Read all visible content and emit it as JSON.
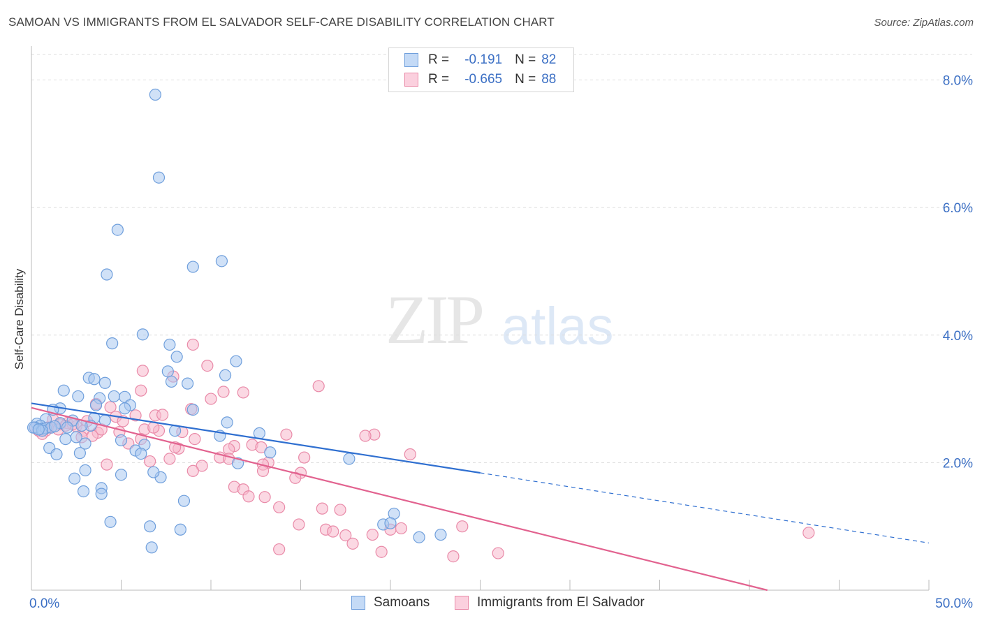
{
  "header": {
    "title": "SAMOAN VS IMMIGRANTS FROM EL SALVADOR SELF-CARE DISABILITY CORRELATION CHART",
    "source": "Source: ZipAtlas.com"
  },
  "watermark": {
    "zip": "ZIP",
    "atlas": "atlas"
  },
  "legend": {
    "rows": [
      {
        "r_label": "R =",
        "r_value": "-0.191",
        "n_label": "N =",
        "n_value": "82"
      },
      {
        "r_label": "R =",
        "r_value": "-0.665",
        "n_label": "N =",
        "n_value": "88"
      }
    ]
  },
  "colors": {
    "blue_fill": "#a9c8f0",
    "blue_stroke": "#6f9fdc",
    "blue_line": "#2f6fd0",
    "pink_fill": "#f7b8cc",
    "pink_stroke": "#e98aa8",
    "pink_line": "#e2628f",
    "tick_label": "#3b6fc4",
    "grid": "#dddddd"
  },
  "chart_data": {
    "type": "scatter",
    "title": "SAMOAN VS IMMIGRANTS FROM EL SALVADOR SELF-CARE DISABILITY CORRELATION CHART",
    "xlabel": "",
    "ylabel": "Self-Care Disability",
    "xlim": [
      0,
      50
    ],
    "ylim": [
      0,
      8.4
    ],
    "x_tick_labels": [
      "0.0%",
      "50.0%"
    ],
    "y_ticks": [
      2,
      4,
      6,
      8
    ],
    "y_tick_labels": [
      "2.0%",
      "4.0%",
      "6.0%",
      "8.0%"
    ],
    "grid": true,
    "legend_position": "top-center",
    "series": [
      {
        "name": "Samoans",
        "r": -0.191,
        "n": 82,
        "trend": {
          "x0": 0,
          "y0": 2.93,
          "x1": 25,
          "y1": 1.84,
          "dash_to_x": 50,
          "dash_to_y": 0.74
        },
        "points": [
          [
            6.9,
            7.77
          ],
          [
            7.1,
            6.47
          ],
          [
            4.8,
            5.65
          ],
          [
            10.6,
            5.16
          ],
          [
            9.0,
            5.07
          ],
          [
            4.2,
            4.95
          ],
          [
            6.2,
            4.01
          ],
          [
            4.5,
            3.87
          ],
          [
            7.7,
            3.85
          ],
          [
            8.1,
            3.66
          ],
          [
            11.4,
            3.59
          ],
          [
            7.6,
            3.43
          ],
          [
            3.2,
            3.33
          ],
          [
            10.8,
            3.37
          ],
          [
            3.5,
            3.31
          ],
          [
            7.8,
            3.27
          ],
          [
            8.7,
            3.24
          ],
          [
            4.1,
            3.25
          ],
          [
            1.8,
            3.13
          ],
          [
            2.6,
            3.04
          ],
          [
            3.8,
            3.01
          ],
          [
            5.2,
            3.03
          ],
          [
            4.6,
            3.04
          ],
          [
            5.5,
            2.9
          ],
          [
            3.6,
            2.9
          ],
          [
            5.2,
            2.85
          ],
          [
            1.6,
            2.85
          ],
          [
            1.2,
            2.83
          ],
          [
            9.0,
            2.83
          ],
          [
            3.5,
            2.7
          ],
          [
            2.3,
            2.66
          ],
          [
            4.1,
            2.66
          ],
          [
            0.8,
            2.68
          ],
          [
            10.9,
            2.63
          ],
          [
            0.3,
            2.61
          ],
          [
            1.6,
            2.62
          ],
          [
            3.3,
            2.58
          ],
          [
            0.5,
            2.58
          ],
          [
            0.2,
            2.55
          ],
          [
            0.6,
            2.53
          ],
          [
            0.1,
            2.55
          ],
          [
            0.8,
            2.54
          ],
          [
            1.1,
            2.55
          ],
          [
            2.0,
            2.55
          ],
          [
            2.8,
            2.58
          ],
          [
            0.6,
            2.5
          ],
          [
            8.0,
            2.5
          ],
          [
            12.7,
            2.46
          ],
          [
            10.5,
            2.42
          ],
          [
            2.5,
            2.4
          ],
          [
            1.9,
            2.37
          ],
          [
            5.0,
            2.35
          ],
          [
            3.0,
            2.3
          ],
          [
            6.3,
            2.28
          ],
          [
            1.0,
            2.23
          ],
          [
            5.8,
            2.19
          ],
          [
            13.3,
            2.16
          ],
          [
            2.7,
            2.15
          ],
          [
            1.4,
            2.13
          ],
          [
            6.1,
            2.14
          ],
          [
            17.7,
            2.06
          ],
          [
            11.5,
            1.99
          ],
          [
            3.0,
            1.88
          ],
          [
            5.0,
            1.81
          ],
          [
            7.2,
            1.77
          ],
          [
            6.8,
            1.85
          ],
          [
            2.4,
            1.75
          ],
          [
            3.9,
            1.6
          ],
          [
            2.9,
            1.55
          ],
          [
            3.9,
            1.51
          ],
          [
            8.5,
            1.4
          ],
          [
            4.4,
            1.07
          ],
          [
            20.2,
            1.2
          ],
          [
            6.6,
            1.0
          ],
          [
            8.3,
            0.95
          ],
          [
            19.6,
            1.03
          ],
          [
            20.0,
            1.05
          ],
          [
            21.6,
            0.83
          ],
          [
            22.8,
            0.87
          ],
          [
            6.7,
            0.67
          ],
          [
            0.4,
            2.52
          ],
          [
            1.3,
            2.57
          ]
        ]
      },
      {
        "name": "Immigrants from El Salvador",
        "r": -0.665,
        "n": 88,
        "trend": {
          "x0": 0,
          "y0": 2.86,
          "x1": 41,
          "y1": 0
        },
        "points": [
          [
            9.0,
            3.85
          ],
          [
            9.8,
            3.52
          ],
          [
            6.2,
            3.44
          ],
          [
            7.9,
            3.35
          ],
          [
            16.0,
            3.2
          ],
          [
            6.1,
            3.13
          ],
          [
            10.7,
            3.11
          ],
          [
            11.8,
            3.1
          ],
          [
            10.0,
            3.0
          ],
          [
            8.9,
            2.84
          ],
          [
            4.4,
            2.87
          ],
          [
            3.6,
            2.92
          ],
          [
            6.9,
            2.74
          ],
          [
            5.8,
            2.74
          ],
          [
            7.3,
            2.75
          ],
          [
            4.7,
            2.72
          ],
          [
            3.1,
            2.65
          ],
          [
            1.2,
            2.68
          ],
          [
            2.0,
            2.62
          ],
          [
            1.6,
            2.6
          ],
          [
            2.5,
            2.57
          ],
          [
            1.1,
            2.55
          ],
          [
            0.2,
            2.55
          ],
          [
            0.4,
            2.5
          ],
          [
            1.5,
            2.52
          ],
          [
            0.8,
            2.5
          ],
          [
            2.9,
            2.5
          ],
          [
            6.3,
            2.52
          ],
          [
            7.1,
            2.5
          ],
          [
            8.4,
            2.48
          ],
          [
            4.9,
            2.48
          ],
          [
            3.7,
            2.47
          ],
          [
            14.2,
            2.44
          ],
          [
            19.1,
            2.44
          ],
          [
            18.6,
            2.42
          ],
          [
            3.4,
            2.42
          ],
          [
            2.8,
            2.4
          ],
          [
            6.1,
            2.37
          ],
          [
            9.1,
            2.37
          ],
          [
            5.4,
            2.3
          ],
          [
            12.3,
            2.28
          ],
          [
            11.3,
            2.26
          ],
          [
            8.2,
            2.22
          ],
          [
            8.0,
            2.24
          ],
          [
            12.8,
            2.24
          ],
          [
            11.0,
            2.21
          ],
          [
            21.1,
            2.13
          ],
          [
            13.2,
            2.0
          ],
          [
            10.5,
            2.08
          ],
          [
            11.0,
            2.06
          ],
          [
            15.2,
            2.08
          ],
          [
            7.7,
            2.06
          ],
          [
            6.6,
            2.02
          ],
          [
            4.2,
            1.97
          ],
          [
            12.9,
            1.97
          ],
          [
            9.5,
            1.95
          ],
          [
            9.0,
            1.87
          ],
          [
            12.9,
            1.87
          ],
          [
            15.0,
            1.84
          ],
          [
            14.7,
            1.76
          ],
          [
            11.3,
            1.62
          ],
          [
            11.8,
            1.58
          ],
          [
            12.1,
            1.47
          ],
          [
            13.0,
            1.46
          ],
          [
            13.8,
            1.3
          ],
          [
            16.2,
            1.28
          ],
          [
            17.2,
            1.26
          ],
          [
            14.9,
            1.03
          ],
          [
            16.4,
            0.95
          ],
          [
            16.8,
            0.92
          ],
          [
            17.5,
            0.86
          ],
          [
            17.9,
            0.73
          ],
          [
            19.0,
            0.87
          ],
          [
            20.0,
            0.95
          ],
          [
            20.6,
            0.97
          ],
          [
            24.0,
            1.0
          ],
          [
            19.5,
            0.6
          ],
          [
            13.8,
            0.64
          ],
          [
            23.5,
            0.53
          ],
          [
            26.0,
            0.58
          ],
          [
            43.3,
            0.9
          ],
          [
            2.3,
            2.6
          ],
          [
            0.6,
            2.45
          ],
          [
            1.9,
            2.58
          ],
          [
            3.9,
            2.52
          ],
          [
            0.9,
            2.55
          ],
          [
            5.1,
            2.65
          ],
          [
            6.8,
            2.55
          ]
        ]
      }
    ]
  },
  "bottom_legend": [
    {
      "label": "Samoans"
    },
    {
      "label": "Immigrants from El Salvador"
    }
  ]
}
